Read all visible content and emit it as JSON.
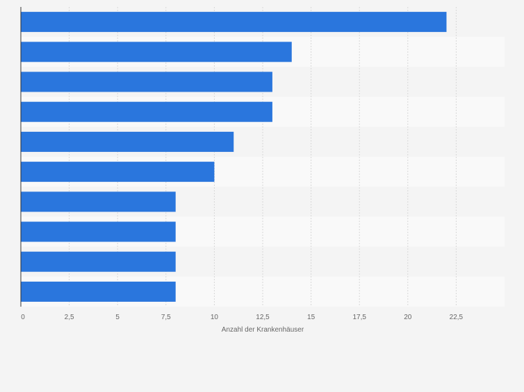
{
  "colors": {
    "page_background": "#f4f4f4",
    "band_light": "#f9f9f9",
    "band_dark": "#f4f4f4",
    "bar": "#2a76dd",
    "grid": "#d7d7d7",
    "axis": "#333333",
    "tick_text": "#666666"
  },
  "chart_data": {
    "type": "bar",
    "orientation": "horizontal",
    "categories": [
      "",
      "",
      "",
      "",
      "",
      "",
      "",
      "",
      "",
      ""
    ],
    "values": [
      22,
      14,
      13,
      13,
      11,
      10,
      8,
      8,
      8,
      8
    ],
    "xlabel": "Anzahl der Krankenhäuser",
    "ylabel": "",
    "xlim": [
      0,
      25
    ],
    "x_ticks": [
      0,
      2.5,
      5,
      7.5,
      10,
      12.5,
      15,
      17.5,
      20,
      22.5
    ],
    "x_tick_labels": [
      "0",
      "2,5",
      "5",
      "7,5",
      "10",
      "12,5",
      "15",
      "17,5",
      "20",
      "22,5"
    ],
    "grid": true,
    "legend": "none"
  }
}
